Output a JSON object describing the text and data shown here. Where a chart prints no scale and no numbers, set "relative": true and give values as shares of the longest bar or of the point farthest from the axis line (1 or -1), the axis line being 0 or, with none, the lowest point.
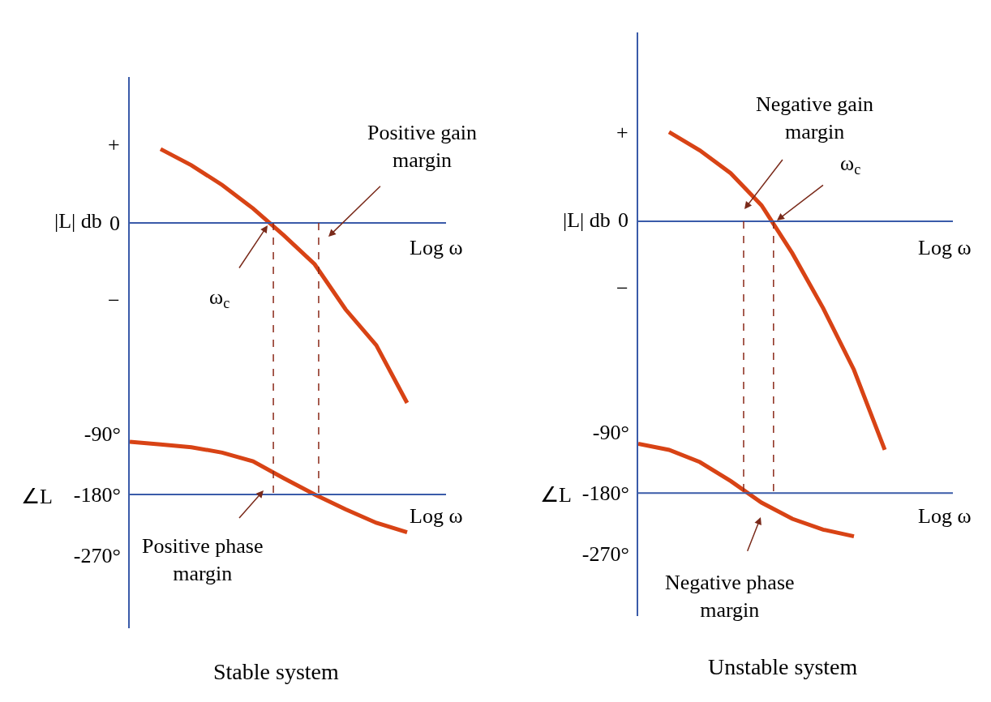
{
  "chart_data": [
    {
      "type": "line",
      "relative": true,
      "ylabel": "|L| db",
      "xlabel": "Log ω",
      "categories": [
        null,
        null,
        null,
        null,
        null,
        null,
        null,
        null,
        null,
        null,
        null
      ],
      "tick_labels": false,
      "series": [
        {
          "color": "#d84315",
          "values": [
            null,
            0.41,
            0.32,
            0.21,
            0.08,
            -0.07,
            -0.23,
            -0.48,
            -0.68,
            -1,
            null
          ]
        }
      ],
      "ref_lines": [
        {
          "axis": "y",
          "value": 0,
          "color": "#3a5ba9",
          "line_style": "solid"
        }
      ],
      "annotations": [
        "+",
        "0",
        "−",
        "Positive gain\nmargin",
        "ω$_{c}$"
      ]
    },
    {
      "type": "line",
      "title": "Stable system",
      "ylabel": "∠L",
      "xlabel": "Log ω",
      "categories": [
        null,
        null,
        null,
        null,
        null,
        null,
        null,
        null,
        null,
        null,
        null
      ],
      "tick_labels": "y",
      "ylim": [
        -378,
        -30
      ],
      "yticks": [
        {
          "value": -90,
          "label": "-90°"
        },
        {
          "value": -180,
          "label": "-180°"
        },
        {
          "value": -270,
          "label": "-270°"
        }
      ],
      "series": [
        {
          "color": "#d84315",
          "values": [
            -102,
            -106,
            -110,
            -118,
            -131,
            -156,
            -180,
            -202,
            -222,
            -236,
            null
          ]
        }
      ],
      "ref_lines": [
        {
          "axis": "y",
          "value": -180,
          "color": "#3a5ba9",
          "line_style": "solid"
        }
      ],
      "annotations": [
        "Positive phase\nmargin"
      ]
    },
    {
      "type": "line",
      "relative": true,
      "ylabel": "|L| db",
      "xlabel": "Log ω",
      "categories": [
        null,
        null,
        null,
        null,
        null,
        null,
        null,
        null,
        null,
        null,
        null
      ],
      "tick_labels": false,
      "series": [
        {
          "color": "#d84315",
          "values": [
            null,
            0.39,
            0.31,
            0.21,
            0.07,
            -0.14,
            -0.38,
            -0.65,
            -1,
            null,
            null
          ]
        }
      ],
      "ref_lines": [
        {
          "axis": "y",
          "value": 0,
          "color": "#3a5ba9",
          "line_style": "solid"
        }
      ],
      "annotations": [
        "+",
        "0",
        "−",
        "Negative gain\nmargin",
        "ω$_{c}$"
      ]
    },
    {
      "type": "line",
      "title": "Unstable system",
      "ylabel": "∠L",
      "xlabel": "Log ω",
      "categories": [
        null,
        null,
        null,
        null,
        null,
        null,
        null,
        null,
        null,
        null,
        null
      ],
      "tick_labels": "y",
      "ylim": [
        -362,
        -32
      ],
      "yticks": [
        {
          "value": -90,
          "label": "-90°"
        },
        {
          "value": -180,
          "label": "-180°"
        },
        {
          "value": -270,
          "label": "-270°"
        }
      ],
      "series": [
        {
          "color": "#d84315",
          "values": [
            -107,
            -116,
            -134,
            -162,
            -194,
            -218,
            -234,
            -244,
            null,
            null,
            null
          ]
        }
      ],
      "ref_lines": [
        {
          "axis": "y",
          "value": -180,
          "color": "#3a5ba9",
          "line_style": "solid"
        }
      ],
      "annotations": [
        "Negative phase\nmargin"
      ]
    }
  ]
}
